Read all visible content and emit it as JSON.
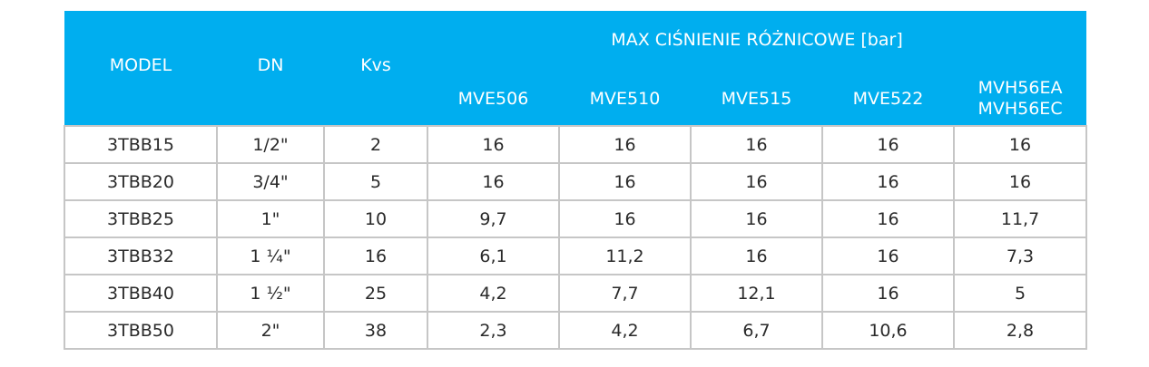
{
  "table": {
    "headers": {
      "model": "MODEL",
      "dn": "DN",
      "kvs": "Kvs",
      "group": "MAX CIŚNIENIE RÓŻNICOWE [bar]",
      "sub": [
        "MVE506",
        "MVE510",
        "MVE515",
        "MVE522"
      ],
      "mvh_line1": "MVH56EA",
      "mvh_line2": "MVH56EC"
    },
    "rows": [
      [
        "3TBB15",
        "1/2\"",
        "2",
        "16",
        "16",
        "16",
        "16",
        "16"
      ],
      [
        "3TBB20",
        "3/4\"",
        "5",
        "16",
        "16",
        "16",
        "16",
        "16"
      ],
      [
        "3TBB25",
        "1\"",
        "10",
        "9,7",
        "16",
        "16",
        "16",
        "11,7"
      ],
      [
        "3TBB32",
        "1 ¼\"",
        "16",
        "6,1",
        "11,2",
        "16",
        "16",
        "7,3"
      ],
      [
        "3TBB40",
        "1 ½\"",
        "25",
        "4,2",
        "7,7",
        "12,1",
        "16",
        "5"
      ],
      [
        "3TBB50",
        "2\"",
        "38",
        "2,3",
        "4,2",
        "6,7",
        "10,6",
        "2,8"
      ]
    ]
  },
  "colors": {
    "header_bg": "#00aeef",
    "header_text": "#ffffff",
    "border": "#c6c6c6",
    "cell_text": "#2a2a2a"
  }
}
